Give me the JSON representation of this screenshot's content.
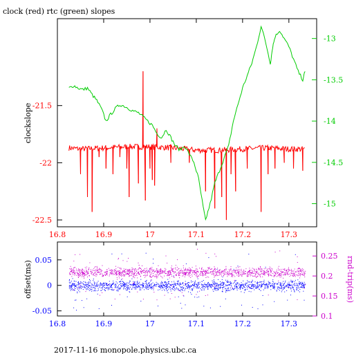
{
  "colors": {
    "red": "#ff0000",
    "green": "#00cc00",
    "blue": "#0000ff",
    "magenta": "#cc00cc",
    "axis": "#000000"
  },
  "footer": "2017-11-16 monopole.physics.ubc.ca",
  "chart_data": [
    {
      "type": "line",
      "title": "clock (red) rtc (green) slopes",
      "ylabel": "clockslope",
      "x_ticks": [
        "16.8",
        "16.9",
        "17",
        "17.1",
        "17.2",
        "17.3"
      ],
      "xlim": [
        16.8,
        17.36
      ],
      "ylim": [
        -22.56,
        -20.74
      ],
      "y_ticks": [
        "-21.5",
        "-22",
        "-22.5"
      ],
      "y2lim": [
        -15.28,
        -12.76
      ],
      "y2_ticks": [
        "-13",
        "-13.5",
        "-14",
        "-14.5",
        "-15"
      ],
      "series": [
        {
          "color": "red",
          "axis": "left",
          "baseline": [
            [
              16.825,
              -21.87
            ],
            [
              16.85,
              -21.88
            ],
            [
              16.9,
              -21.87
            ],
            [
              16.95,
              -21.86
            ],
            [
              17.0,
              -21.86
            ],
            [
              17.05,
              -21.87
            ],
            [
              17.1,
              -21.89
            ],
            [
              17.15,
              -21.89
            ],
            [
              17.2,
              -21.88
            ],
            [
              17.25,
              -21.87
            ],
            [
              17.3,
              -21.88
            ],
            [
              17.335,
              -21.88
            ]
          ],
          "spikes": [
            [
              16.85,
              -22.1
            ],
            [
              16.865,
              -22.3
            ],
            [
              16.875,
              -22.43
            ],
            [
              16.89,
              -21.95
            ],
            [
              16.905,
              -22.05
            ],
            [
              16.92,
              -22.1
            ],
            [
              16.935,
              -21.95
            ],
            [
              16.95,
              -22.05
            ],
            [
              16.955,
              -22.3
            ],
            [
              16.975,
              -22.18
            ],
            [
              16.985,
              -21.2
            ],
            [
              16.99,
              -22.33
            ],
            [
              17.0,
              -22.05
            ],
            [
              17.005,
              -22.15
            ],
            [
              17.01,
              -22.2
            ],
            [
              17.015,
              -21.7
            ],
            [
              17.045,
              -22.0
            ],
            [
              17.085,
              -22.0
            ],
            [
              17.12,
              -22.25
            ],
            [
              17.14,
              -22.4
            ],
            [
              17.155,
              -22.3
            ],
            [
              17.165,
              -22.5
            ],
            [
              17.175,
              -22.1
            ],
            [
              17.185,
              -22.25
            ],
            [
              17.21,
              -22.05
            ],
            [
              17.24,
              -22.43
            ],
            [
              17.255,
              -22.1
            ],
            [
              17.27,
              -22.05
            ],
            [
              17.29,
              -22.0
            ],
            [
              17.31,
              -22.05
            ],
            [
              17.33,
              -22.07
            ]
          ]
        },
        {
          "color": "green",
          "axis": "right",
          "points": [
            [
              16.825,
              -13.6
            ],
            [
              16.835,
              -13.57
            ],
            [
              16.845,
              -13.6
            ],
            [
              16.855,
              -13.62
            ],
            [
              16.865,
              -13.6
            ],
            [
              16.875,
              -13.68
            ],
            [
              16.885,
              -13.75
            ],
            [
              16.895,
              -13.85
            ],
            [
              16.905,
              -14.0
            ],
            [
              16.915,
              -13.92
            ],
            [
              16.925,
              -13.85
            ],
            [
              16.935,
              -13.8
            ],
            [
              16.945,
              -13.82
            ],
            [
              16.955,
              -13.85
            ],
            [
              16.965,
              -13.88
            ],
            [
              16.975,
              -13.9
            ],
            [
              16.985,
              -13.95
            ],
            [
              16.995,
              -14.0
            ],
            [
              17.005,
              -14.05
            ],
            [
              17.015,
              -14.15
            ],
            [
              17.025,
              -14.2
            ],
            [
              17.035,
              -14.1
            ],
            [
              17.045,
              -14.2
            ],
            [
              17.055,
              -14.3
            ],
            [
              17.065,
              -14.35
            ],
            [
              17.075,
              -14.3
            ],
            [
              17.085,
              -14.4
            ],
            [
              17.095,
              -14.5
            ],
            [
              17.105,
              -14.7
            ],
            [
              17.115,
              -15.05
            ],
            [
              17.12,
              -15.2
            ],
            [
              17.13,
              -15.0
            ],
            [
              17.14,
              -14.75
            ],
            [
              17.15,
              -14.6
            ],
            [
              17.16,
              -14.45
            ],
            [
              17.17,
              -14.3
            ],
            [
              17.18,
              -14.0
            ],
            [
              17.19,
              -13.8
            ],
            [
              17.2,
              -13.6
            ],
            [
              17.21,
              -13.45
            ],
            [
              17.22,
              -13.3
            ],
            [
              17.23,
              -13.1
            ],
            [
              17.24,
              -12.85
            ],
            [
              17.25,
              -13.05
            ],
            [
              17.26,
              -13.3
            ],
            [
              17.265,
              -13.1
            ],
            [
              17.27,
              -12.98
            ],
            [
              17.28,
              -12.9
            ],
            [
              17.29,
              -13.0
            ],
            [
              17.3,
              -13.1
            ],
            [
              17.31,
              -13.25
            ],
            [
              17.32,
              -13.4
            ],
            [
              17.33,
              -13.5
            ],
            [
              17.335,
              -13.4
            ]
          ]
        }
      ]
    },
    {
      "type": "scatter",
      "ylabel": "offset(ms)",
      "y2label": "rnd-trip(ms)",
      "x_ticks": [
        "16.8",
        "16.9",
        "17",
        "17.1",
        "17.2",
        "17.3"
      ],
      "xlim": [
        16.8,
        17.36
      ],
      "ylim": [
        -0.06,
        0.085
      ],
      "y_ticks": [
        "0.05",
        "0",
        "-0.05"
      ],
      "y2lim": [
        0.1,
        0.285
      ],
      "y2_ticks": [
        "0.25",
        "0.2",
        "0.15",
        "0.1"
      ],
      "series": [
        {
          "color": "blue",
          "axis": "left",
          "x_range": [
            16.825,
            17.335
          ],
          "center": 0.0,
          "spread": 0.01,
          "outlier_low": -0.05,
          "outlier_high": 0.065
        },
        {
          "color": "magenta",
          "axis": "right",
          "x_range": [
            16.825,
            17.335
          ],
          "center": 0.21,
          "spread": 0.012,
          "outlier_low": 0.14,
          "outlier_high": 0.27
        }
      ]
    }
  ]
}
